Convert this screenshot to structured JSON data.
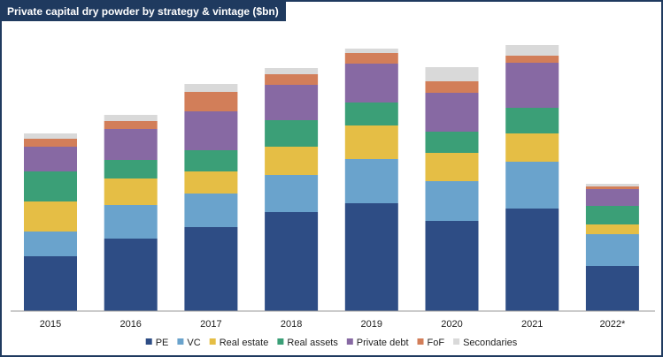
{
  "title": "Private capital dry powder by strategy & vintage ($bn)",
  "chart_data": {
    "type": "bar",
    "stacked": true,
    "categories": [
      "2015",
      "2016",
      "2017",
      "2018",
      "2019",
      "2020",
      "2021",
      "2022*"
    ],
    "ylim": [
      0,
      310
    ],
    "grid": false,
    "legend": "bottom",
    "series": [
      {
        "name": "PE",
        "color": "#2e4d85",
        "values": [
          62,
          82,
          95,
          112,
          122,
          102,
          116,
          51
        ]
      },
      {
        "name": "VC",
        "color": "#6aa3cc",
        "values": [
          28,
          38,
          38,
          42,
          50,
          45,
          53,
          36
        ]
      },
      {
        "name": "Real estate",
        "color": "#e5be45",
        "values": [
          34,
          30,
          25,
          32,
          38,
          32,
          32,
          11
        ]
      },
      {
        "name": "Real assets",
        "color": "#3b9f77",
        "values": [
          34,
          21,
          24,
          30,
          26,
          24,
          29,
          21
        ]
      },
      {
        "name": "Private debt",
        "color": "#8769a3",
        "values": [
          28,
          35,
          44,
          40,
          44,
          44,
          51,
          19
        ]
      },
      {
        "name": "FoF",
        "color": "#d27e59",
        "values": [
          9,
          9,
          22,
          12,
          12,
          13,
          8,
          3
        ]
      },
      {
        "name": "Secondaries",
        "color": "#d9d9d9",
        "values": [
          6,
          7,
          9,
          7,
          5,
          16,
          12,
          3
        ]
      }
    ]
  }
}
